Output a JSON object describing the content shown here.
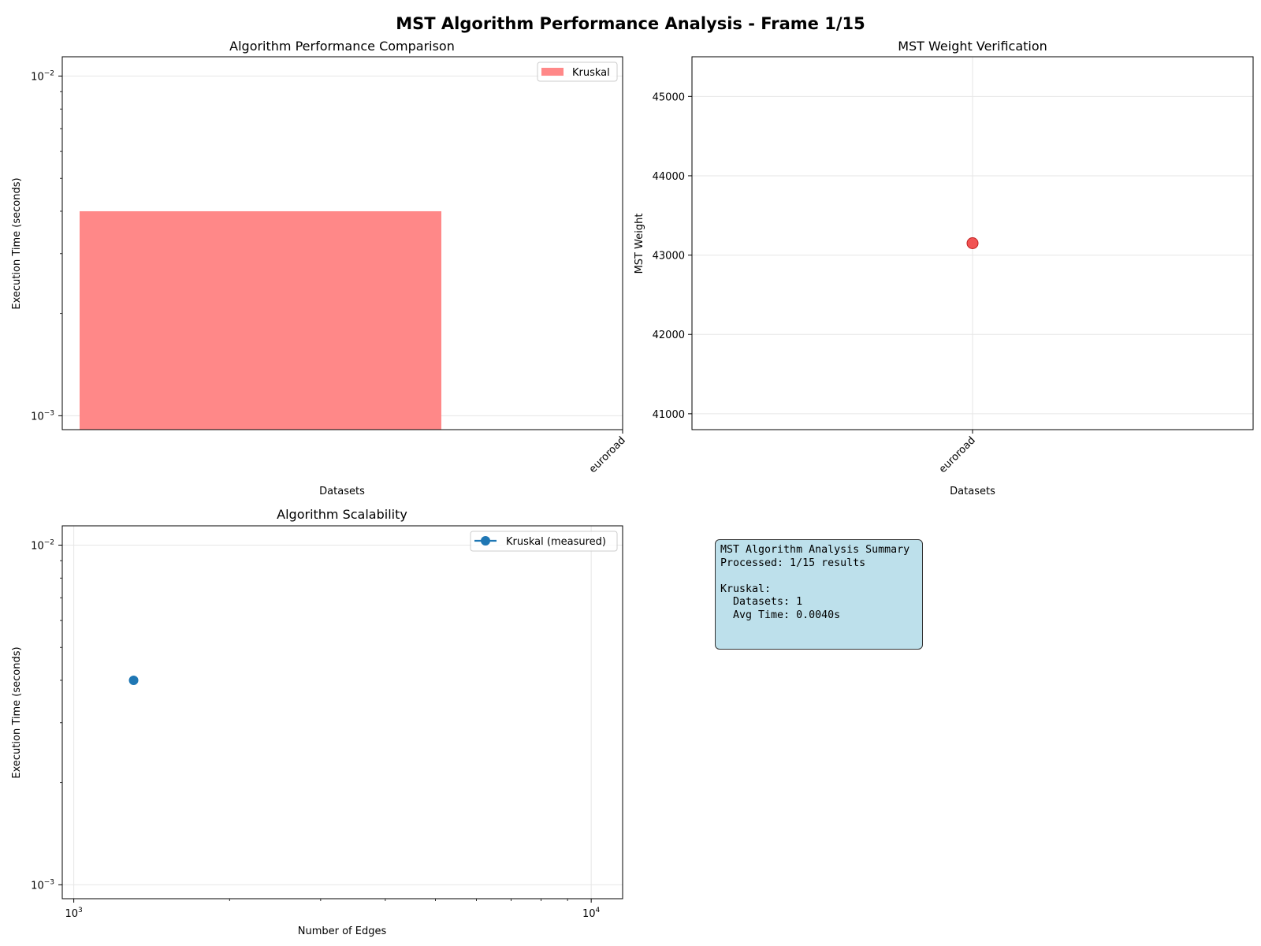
{
  "figure": {
    "suptitle": "MST Algorithm Performance Analysis - Frame 1/15"
  },
  "chart_data": [
    {
      "id": "performance",
      "type": "bar",
      "title": "Algorithm Performance Comparison",
      "xlabel": "Datasets",
      "ylabel": "Execution Time (seconds)",
      "yscale": "log",
      "ylim": [
        0.00091,
        0.0114
      ],
      "y_ticks": [
        {
          "value": 0.001,
          "label": "10",
          "exp": "−3"
        },
        {
          "value": 0.01,
          "label": "10",
          "exp": "−2"
        }
      ],
      "categories": [
        "euroroad"
      ],
      "series": [
        {
          "name": "Kruskal",
          "color": "#ff8888",
          "values": [
            0.004
          ]
        }
      ],
      "grid": true,
      "legend": "top-right"
    },
    {
      "id": "weight",
      "type": "scatter",
      "title": "MST Weight Verification",
      "xlabel": "Datasets",
      "ylabel": "MST Weight",
      "ylim": [
        40800,
        45500
      ],
      "y_ticks": [
        41000,
        42000,
        43000,
        44000,
        45000
      ],
      "categories": [
        "euroroad"
      ],
      "series": [
        {
          "color": "#f04040",
          "values": [
            43150
          ]
        }
      ],
      "grid": true
    },
    {
      "id": "scalability",
      "type": "line",
      "title": "Algorithm Scalability",
      "xlabel": "Number of Edges",
      "ylabel": "Execution Time (seconds)",
      "xscale": "log",
      "yscale": "log",
      "xlim": [
        950,
        11500
      ],
      "ylim": [
        0.00091,
        0.0114
      ],
      "x_ticks": [
        {
          "value": 1000,
          "label": "10",
          "exp": "3"
        },
        {
          "value": 10000,
          "label": "10",
          "exp": "4"
        }
      ],
      "y_ticks": [
        {
          "value": 0.001,
          "label": "10",
          "exp": "−3"
        },
        {
          "value": 0.01,
          "label": "10",
          "exp": "−2"
        }
      ],
      "series": [
        {
          "name": "Kruskal (measured)",
          "color": "#1f77b4",
          "x": [
            1305
          ],
          "y": [
            0.004
          ]
        }
      ],
      "grid": true,
      "legend": "top-right"
    }
  ],
  "summary": {
    "lines": [
      "MST Algorithm Analysis Summary",
      "Processed: 1/15 results",
      "",
      "Kruskal:",
      "  Datasets: 1",
      "  Avg Time: 0.0040s"
    ],
    "background": "#add8e6"
  }
}
